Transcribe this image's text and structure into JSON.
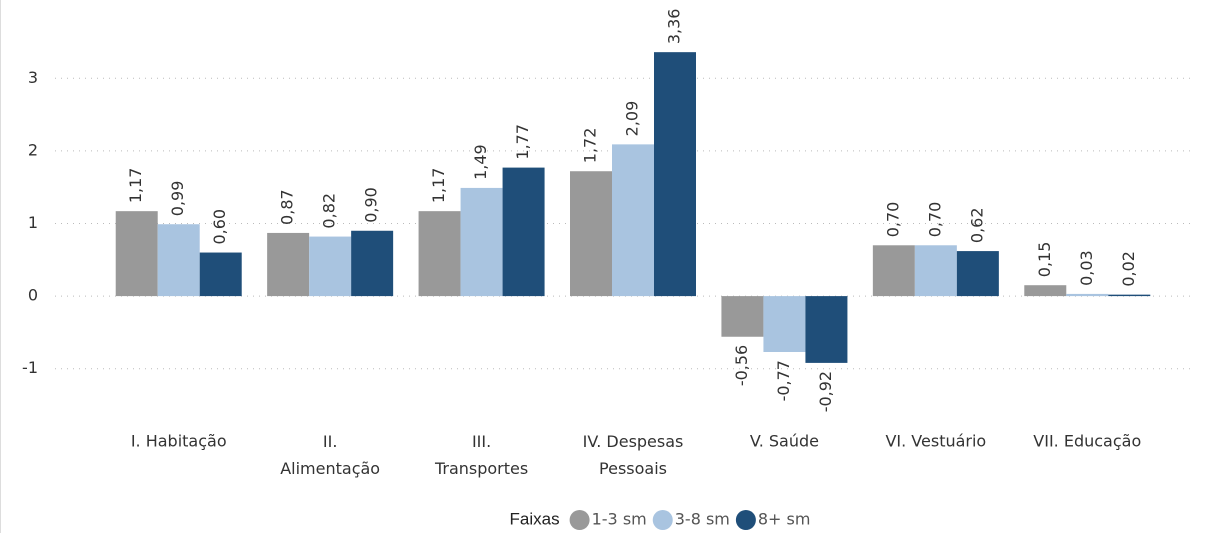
{
  "chart_data": {
    "type": "bar",
    "categories": [
      "I. Habitação",
      "II.\nAlimentação",
      "III.\nTransportes",
      "IV. Despesas\nPessoais",
      "V. Saúde",
      "VI. Vestuário",
      "VII. Educação"
    ],
    "series": [
      {
        "name": "1-3 sm",
        "color": "#999999",
        "values": [
          1.17,
          0.87,
          1.17,
          1.72,
          -0.56,
          0.7,
          0.15
        ],
        "value_labels": [
          "1,17",
          "0,87",
          "1,17",
          "1,72",
          "-0,56",
          "0,70",
          "0,15"
        ]
      },
      {
        "name": "3-8 sm",
        "color": "#a9c4e0",
        "values": [
          0.99,
          0.82,
          1.49,
          2.09,
          -0.77,
          0.7,
          0.03
        ],
        "value_labels": [
          "0,99",
          "0,82",
          "1,49",
          "2,09",
          "-0,77",
          "0,70",
          "0,03"
        ]
      },
      {
        "name": "8+ sm",
        "color": "#1f4e79",
        "values": [
          0.6,
          0.9,
          1.77,
          3.36,
          -0.92,
          0.62,
          0.02
        ],
        "value_labels": [
          "0,60",
          "0,90",
          "1,77",
          "3,36",
          "-0,92",
          "0,62",
          "0,02"
        ]
      }
    ],
    "legend_title": "Faixas",
    "ylim": [
      -1.5,
      3.5
    ],
    "yticks": [
      -1,
      0,
      1,
      2,
      3
    ],
    "grid": true,
    "legend": "bottom"
  }
}
